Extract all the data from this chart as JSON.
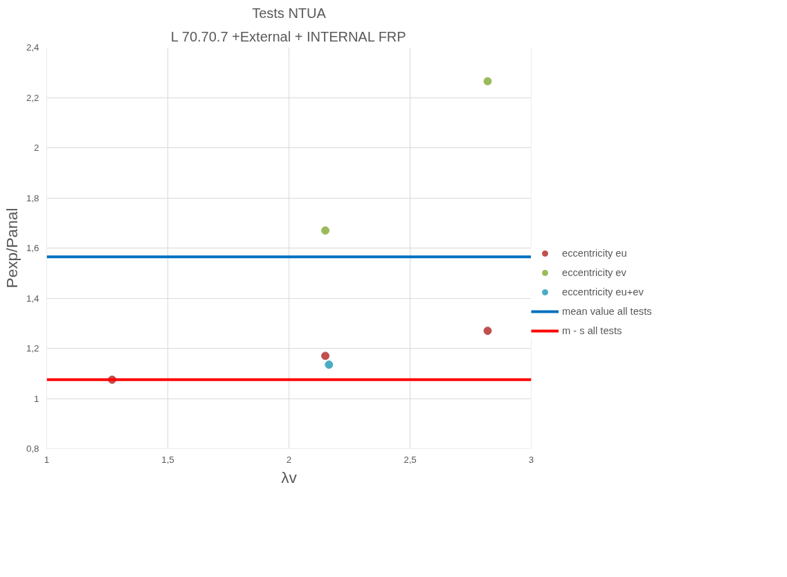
{
  "chart_data": {
    "type": "scatter",
    "title": "Tests NTUA",
    "subtitle": "L 70.70.7 +External + INTERNAL FRP",
    "xlabel": "λv",
    "ylabel": "Pexp/Panal",
    "series": [
      {
        "name": "eccentricity eu",
        "color": "#c0504d",
        "x": [
          1.27,
          2.15,
          2.82
        ],
        "values": [
          1.075,
          1.17,
          1.27
        ]
      },
      {
        "name": "eccentricity ev",
        "color": "#9bbb59",
        "x": [
          2.15,
          2.82
        ],
        "values": [
          1.67,
          2.265
        ]
      },
      {
        "name": "eccentricity eu+ev",
        "color": "#4bacc6",
        "x": [
          2.165
        ],
        "values": [
          1.135
        ]
      }
    ],
    "ref_lines": [
      {
        "axis": "y",
        "value": 1.565,
        "label": "mean value all tests",
        "color": "#0070c0"
      },
      {
        "axis": "y",
        "value": 1.075,
        "label": "m - s all tests",
        "color": "#ff0000"
      }
    ],
    "xlim": [
      1,
      3
    ],
    "ylim": [
      0.8,
      2.4
    ],
    "xticks": [
      1,
      {
        "value": 1.5,
        "label": "1,5"
      },
      2,
      {
        "value": 2.5,
        "label": "2,5"
      },
      3
    ],
    "yticks": [
      {
        "value": 0.8,
        "label": "0,8"
      },
      1,
      {
        "value": 1.2,
        "label": "1,2"
      },
      {
        "value": 1.4,
        "label": "1,4"
      },
      {
        "value": 1.6,
        "label": "1,6"
      },
      {
        "value": 1.8,
        "label": "1,8"
      },
      2,
      {
        "value": 2.2,
        "label": "2,2"
      },
      {
        "value": 2.4,
        "label": "2,4"
      }
    ],
    "grid": true,
    "legend": "right",
    "marker": "circle"
  }
}
